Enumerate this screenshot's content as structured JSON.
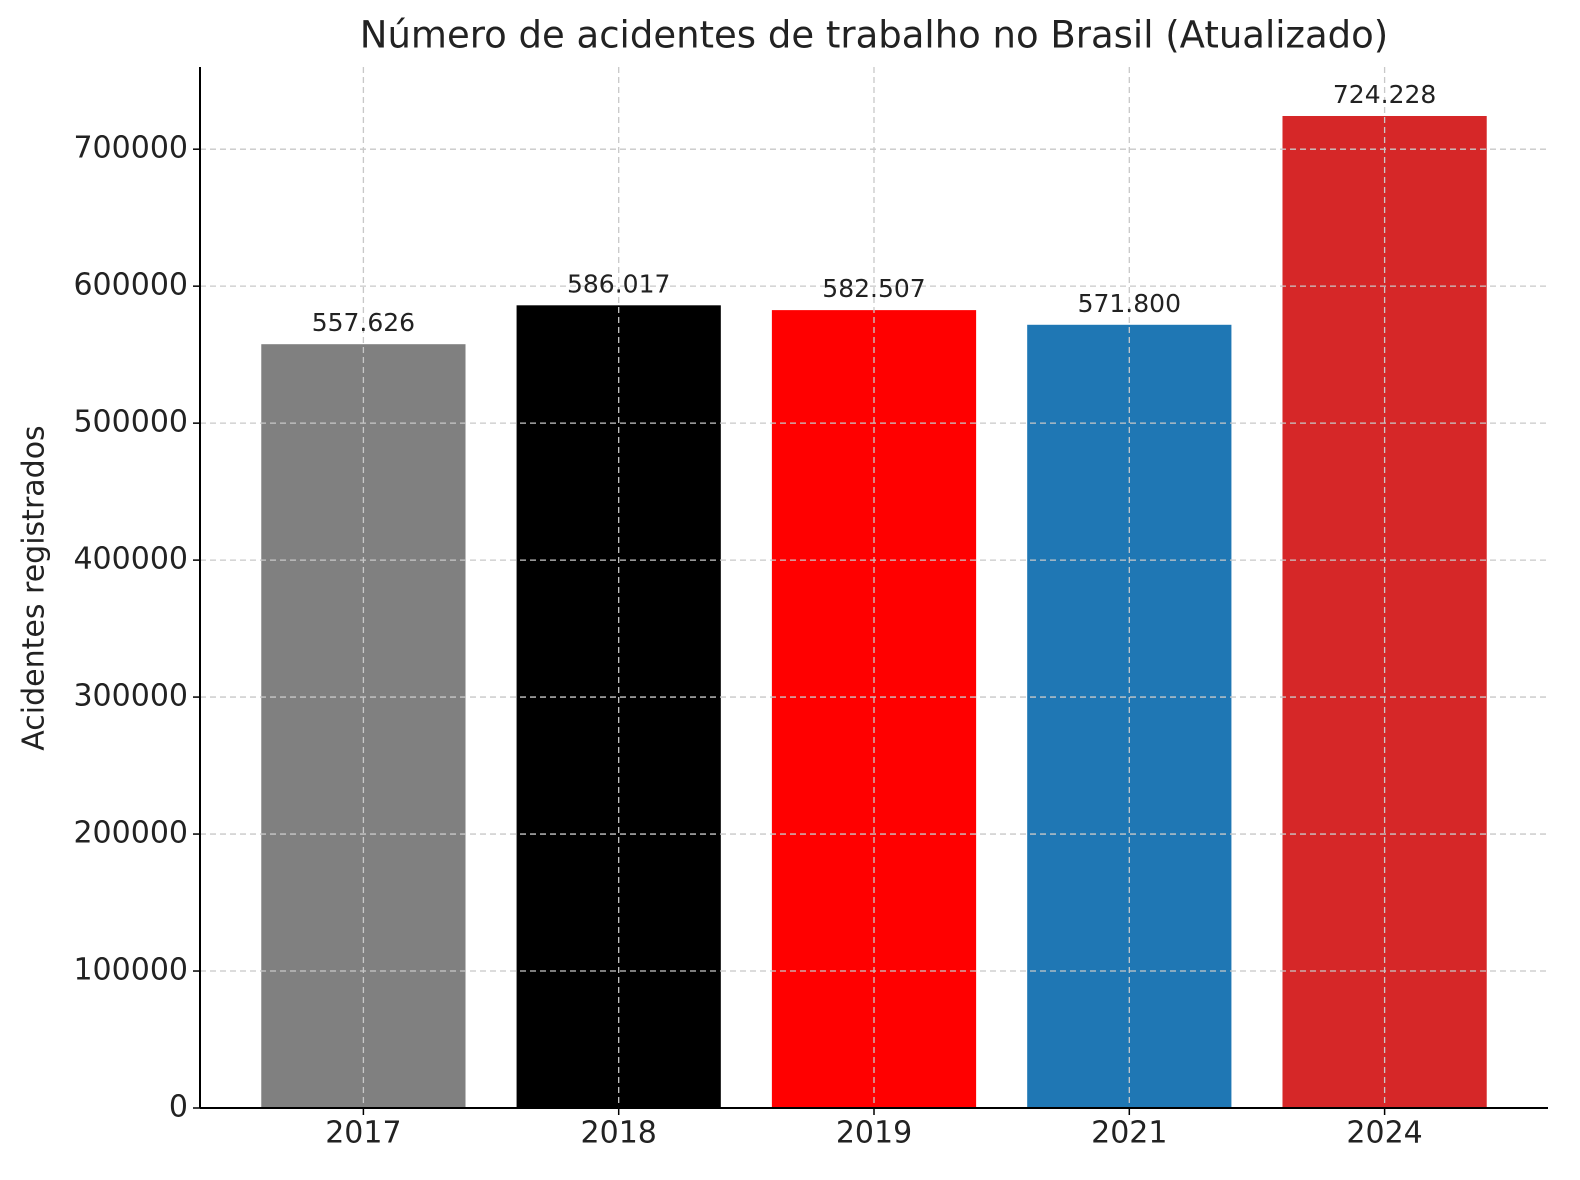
{
  "chart_data": {
    "type": "bar",
    "title": "Número de acidentes de trabalho no Brasil (Atualizado)",
    "y_label": "Acidentes registrados",
    "categories": [
      "2017",
      "2018",
      "2019",
      "2021",
      "2024"
    ],
    "values": [
      557626,
      586017,
      582507,
      571800,
      724228
    ],
    "value_labels": [
      "557.626",
      "586.017",
      "582.507",
      "571.800",
      "724.228"
    ],
    "colors": [
      "#808080",
      "#000000",
      "#ff0000",
      "#1f77b4",
      "#d62728"
    ],
    "ylim": [
      0,
      760000
    ],
    "yticks": [
      0,
      100000,
      200000,
      300000,
      400000,
      500000,
      600000,
      700000
    ],
    "grid": true
  }
}
